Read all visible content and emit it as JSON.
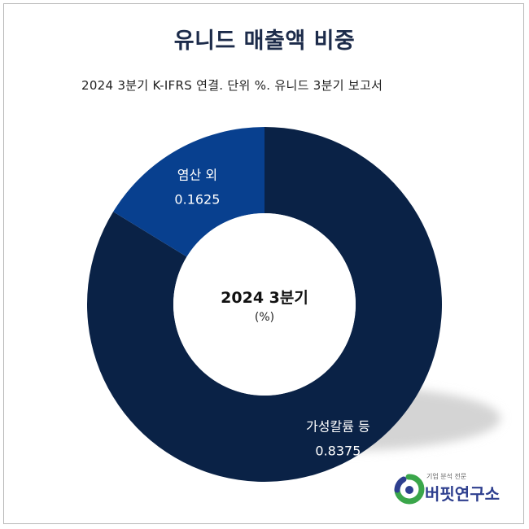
{
  "chart_data": {
    "type": "donut",
    "title": "유니드 매출액 비중",
    "subtitle": "2024 3분기 K-IFRS 연결. 단위 %. 유니드 3분기 보고서",
    "center_label": "2024 3분기",
    "center_unit": "(%)",
    "slices": [
      {
        "label": "가성칼륨 등",
        "value": 0.8375,
        "value_text": "0.8375",
        "color": "#0a2246"
      },
      {
        "label": "염산 외",
        "value": 0.1625,
        "value_text": "0.1625",
        "color": "#08408f"
      }
    ]
  },
  "logo": {
    "small_text": "기업 분석 전문",
    "main_text": "버핏연구소"
  },
  "colors": {
    "title": "#1c2b4a",
    "shadow": "#d4d4d4",
    "logo_green": "#3aa64a",
    "logo_blue": "#2e3f8f"
  }
}
